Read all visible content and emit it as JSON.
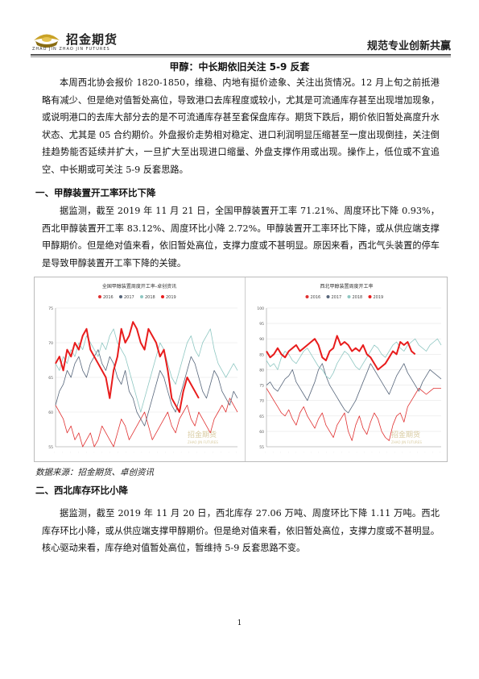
{
  "header": {
    "logo_cn": "招金期货",
    "logo_en": "ZHAO JIN   ZHAO JIN FUTURES",
    "slogan": "规范专业创新共赢"
  },
  "title": "甲醇：中长期依旧关注 5-9 反套",
  "intro": "本周西北协会报价 1820-1850，维稳、内地有挺价迹象、关注出货情况。12 月上旬之前抵港略有减少、但是绝对值暂处高位，导致港口去库程度或较小，尤其是可流通库存甚至出现增加现象，或说明港口的去库大部分去的是不可流通库存甚至套保盘库存。期货下跌后，期价依旧暂处高度升水状态、尤其是 05 合约期价。外盘报价走势相对稳定、进口利润明显压缩甚至一度出现倒挂，关注倒挂趋势能否延续并扩大，一旦扩大至出现进口缩量、外盘支撑作用或出现。操作上，低位或不宜追空、中长期或可关注 5-9 反套思路。",
  "section1": {
    "heading": "一、甲醇装置开工率环比下降",
    "body": "据监测，截至 2019 年 11 月 21 日，全国甲醇装置开工率 71.21%、周度环比下降 0.93%，西北甲醇装置开工率 83.12%、周度环比小降 2.72%。甲醇装置开工率环比下降，或从供应端支撑甲醇期价。但是绝对值来看，依旧暂处高位，支撑力度或不甚明显。原因来看，西北气头装置的停车是导致甲醇装置开工率下降的关键。"
  },
  "chart_data": [
    {
      "type": "line",
      "title": "全国甲醇装置周度开工率-卓创资讯",
      "ylim": [
        55,
        75
      ],
      "yticks": [
        "75",
        "70",
        "65",
        "60",
        "55"
      ],
      "watermark": "招金期货",
      "watermark_en": "ZHAO JIN FUTURES",
      "series": [
        {
          "name": "2016",
          "color": "#e03030",
          "values": [
            61,
            60,
            59,
            57,
            58,
            56,
            57,
            55,
            56,
            57,
            55,
            56,
            58,
            57,
            56,
            55,
            57,
            59,
            58,
            56,
            57,
            58,
            59,
            60,
            58,
            56,
            57,
            58,
            59,
            60,
            58,
            57,
            59,
            60,
            61,
            59,
            58,
            60,
            59,
            58,
            57,
            59,
            60,
            61,
            60,
            62,
            61,
            60
          ]
        },
        {
          "name": "2017",
          "color": "#56657a",
          "values": [
            61,
            63,
            64,
            66,
            65,
            67,
            68,
            66,
            65,
            67,
            68,
            69,
            67,
            66,
            68,
            67,
            65,
            64,
            66,
            63,
            62,
            60,
            59,
            58,
            60,
            62,
            64,
            66,
            65,
            63,
            61,
            60,
            62,
            64,
            66,
            68,
            67,
            65,
            63,
            62,
            64,
            66,
            65,
            63,
            62,
            61,
            63,
            62
          ]
        },
        {
          "name": "2018",
          "color": "#8ec7c2",
          "values": [
            67,
            66,
            68,
            67,
            69,
            68,
            70,
            69,
            71,
            70,
            69,
            68,
            70,
            69,
            71,
            72,
            70,
            69,
            68,
            66,
            64,
            62,
            60,
            62,
            64,
            66,
            68,
            70,
            69,
            67,
            65,
            64,
            66,
            68,
            70,
            71,
            69,
            68,
            70,
            71,
            72,
            69,
            67,
            66,
            65,
            66,
            67,
            66
          ]
        },
        {
          "name": "2019",
          "color": "#e81c1c",
          "values": [
            67,
            68,
            66,
            69,
            68,
            70,
            69,
            71,
            72,
            69,
            68,
            67,
            66,
            65,
            62,
            66,
            68,
            72,
            70,
            71,
            73,
            72,
            70,
            69,
            72,
            71,
            70,
            68,
            69,
            66,
            62,
            61,
            60,
            63,
            65,
            64,
            63,
            62
          ]
        }
      ]
    },
    {
      "type": "line",
      "title": "西北甲醇装置周度开工率",
      "ylim": [
        55,
        100
      ],
      "yticks": [
        "100",
        "95",
        "90",
        "85",
        "80",
        "75",
        "70",
        "65",
        "60",
        "55"
      ],
      "watermark": "招金期货",
      "watermark_en": "ZHAO JIN FUTURES",
      "series": [
        {
          "name": "2016",
          "color": "#e03030",
          "values": [
            74,
            72,
            70,
            68,
            66,
            65,
            67,
            64,
            62,
            66,
            68,
            65,
            63,
            61,
            64,
            66,
            62,
            60,
            58,
            62,
            64,
            66,
            60,
            57,
            62,
            65,
            61,
            59,
            63,
            66,
            64,
            60,
            58,
            57,
            62,
            65,
            66,
            63,
            68,
            70,
            72,
            74,
            73,
            72,
            73,
            74,
            74,
            74
          ]
        },
        {
          "name": "2017",
          "color": "#56657a",
          "values": [
            75,
            76,
            74,
            73,
            75,
            77,
            78,
            80,
            76,
            74,
            72,
            70,
            73,
            76,
            80,
            82,
            78,
            75,
            73,
            71,
            69,
            67,
            66,
            68,
            70,
            73,
            76,
            79,
            82,
            80,
            78,
            76,
            74,
            72,
            75,
            78,
            80,
            82,
            79,
            77,
            75,
            73,
            76,
            78,
            80,
            79,
            78,
            77
          ]
        },
        {
          "name": "2018",
          "color": "#8ec7c2",
          "values": [
            83,
            81,
            82,
            80,
            84,
            86,
            85,
            83,
            82,
            84,
            86,
            87,
            85,
            83,
            81,
            80,
            78,
            77,
            79,
            82,
            84,
            86,
            85,
            83,
            81,
            80,
            82,
            84,
            86,
            88,
            87,
            85,
            84,
            86,
            88,
            89,
            87,
            86,
            88,
            89,
            90,
            88,
            87,
            86,
            88,
            89,
            90,
            88
          ]
        },
        {
          "name": "2019",
          "color": "#e81c1c",
          "values": [
            86,
            84,
            85,
            87,
            85,
            84,
            86,
            87,
            88,
            86,
            87,
            88,
            89,
            90,
            88,
            84,
            83,
            86,
            87,
            91,
            88,
            89,
            88,
            86,
            87,
            86,
            88,
            85,
            84,
            82,
            80,
            81,
            82,
            84,
            86,
            85,
            89,
            88,
            89,
            86,
            85
          ]
        }
      ]
    }
  ],
  "source": "数据来源：招金期货、卓创资讯",
  "section2": {
    "heading": "二、西北库存环比小降",
    "body": "据监测，截至 2019 年 11 月 20 日，西北库存 27.06 万吨、周度环比下降 1.11 万吨。西北库存环比小降，或从供应端支撑甲醇期价。但是绝对值来看，依旧暂处高位，支撑力度或不甚明显。核心驱动来看，库存绝对值暂处高位，暂维持 5-9 反套思路不变。"
  },
  "page_number": "1"
}
